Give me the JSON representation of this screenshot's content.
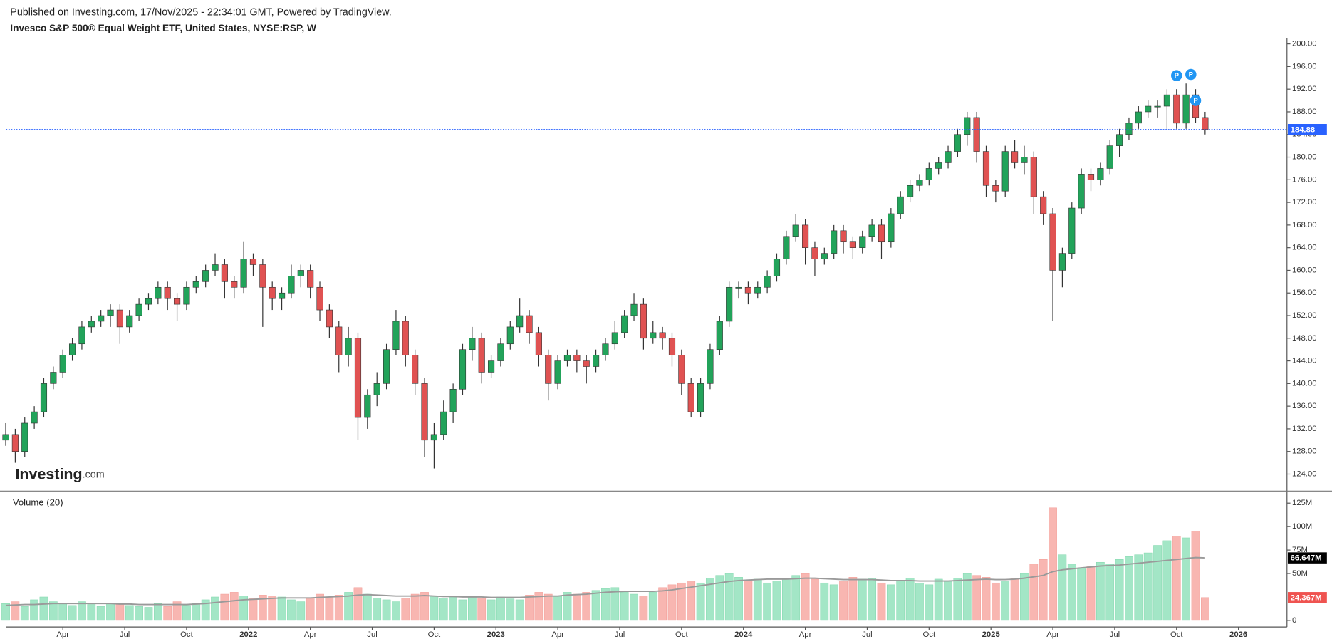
{
  "header": {
    "published": "Published on Investing.com, 17/Nov/2025 - 22:34:01 GMT, Powered by TradingView.",
    "title": "Invesco S&P 500® Equal Weight ETF, United States, NYSE:RSP, W"
  },
  "logo": [
    "Investing",
    ".com"
  ],
  "chart_data": [
    {
      "type": "candlestick",
      "up_color": "#22a35a",
      "down_color": "#e05252",
      "wick_color": "#333333",
      "xlim": [
        -0.6,
        134.6
      ],
      "ylim": [
        121,
        201
      ],
      "yticks": [
        {
          "value": 124,
          "label": "124.00"
        },
        {
          "value": 128,
          "label": "128.00"
        },
        {
          "value": 132,
          "label": "132.00"
        },
        {
          "value": 136,
          "label": "136.00"
        },
        {
          "value": 140,
          "label": "140.00"
        },
        {
          "value": 144,
          "label": "144.00"
        },
        {
          "value": 148,
          "label": "148.00"
        },
        {
          "value": 152,
          "label": "152.00"
        },
        {
          "value": 156,
          "label": "156.00"
        },
        {
          "value": 160,
          "label": "160.00"
        },
        {
          "value": 164,
          "label": "164.00"
        },
        {
          "value": 168,
          "label": "168.00"
        },
        {
          "value": 172,
          "label": "172.00"
        },
        {
          "value": 176,
          "label": "176.00"
        },
        {
          "value": 180,
          "label": "180.00"
        },
        {
          "value": 184,
          "label": "184.00"
        },
        {
          "value": 188,
          "label": "188.00"
        },
        {
          "value": 192,
          "label": "192.00"
        },
        {
          "value": 196,
          "label": "196.00"
        },
        {
          "value": 200,
          "label": "200.00"
        }
      ],
      "last_price_label": "184.88",
      "price_line_color": "#2962ff",
      "markers": [
        {
          "x": 123,
          "y": 194.4,
          "label": "P"
        },
        {
          "x": 124.5,
          "y": 194.6,
          "label": "P"
        },
        {
          "x": 125,
          "y": 190,
          "label": "P"
        }
      ],
      "candles": [
        [
          130,
          133,
          129,
          131
        ],
        [
          131,
          132,
          126,
          128
        ],
        [
          128,
          134,
          127,
          133
        ],
        [
          133,
          136,
          132,
          135
        ],
        [
          135,
          141,
          134,
          140
        ],
        [
          140,
          143,
          139,
          142
        ],
        [
          142,
          146,
          141,
          145
        ],
        [
          145,
          148,
          144,
          147
        ],
        [
          147,
          151,
          146,
          150
        ],
        [
          150,
          152,
          149,
          151
        ],
        [
          151,
          153,
          150,
          152
        ],
        [
          152,
          154,
          150,
          153
        ],
        [
          153,
          154,
          147,
          150
        ],
        [
          150,
          153,
          149,
          152
        ],
        [
          152,
          155,
          151,
          154
        ],
        [
          154,
          156,
          153,
          155
        ],
        [
          155,
          158,
          154,
          157
        ],
        [
          157,
          158,
          153,
          155
        ],
        [
          155,
          156,
          151,
          154
        ],
        [
          154,
          158,
          153,
          157
        ],
        [
          157,
          159,
          156,
          158
        ],
        [
          158,
          161,
          157,
          160
        ],
        [
          160,
          163,
          159,
          161
        ],
        [
          161,
          162,
          155,
          158
        ],
        [
          158,
          159,
          155,
          157
        ],
        [
          157,
          165,
          156,
          162
        ],
        [
          162,
          163,
          159,
          161
        ],
        [
          161,
          162,
          150,
          157
        ],
        [
          157,
          158,
          153,
          155
        ],
        [
          155,
          157,
          153,
          156
        ],
        [
          156,
          161,
          155,
          159
        ],
        [
          159,
          161,
          157,
          160
        ],
        [
          160,
          161,
          155,
          157
        ],
        [
          157,
          158,
          151,
          153
        ],
        [
          153,
          154,
          148,
          150
        ],
        [
          150,
          151,
          142,
          145
        ],
        [
          145,
          150,
          143,
          148
        ],
        [
          148,
          149,
          130,
          134
        ],
        [
          134,
          139,
          132,
          138
        ],
        [
          138,
          142,
          136,
          140
        ],
        [
          140,
          147,
          139,
          146
        ],
        [
          146,
          153,
          145,
          151
        ],
        [
          151,
          152,
          143,
          145
        ],
        [
          145,
          146,
          138,
          140
        ],
        [
          140,
          141,
          127,
          130
        ],
        [
          130,
          133,
          125,
          131
        ],
        [
          131,
          137,
          130,
          135
        ],
        [
          135,
          140,
          133,
          139
        ],
        [
          139,
          147,
          138,
          146
        ],
        [
          146,
          150,
          144,
          148
        ],
        [
          148,
          149,
          140,
          142
        ],
        [
          142,
          145,
          141,
          144
        ],
        [
          144,
          148,
          143,
          147
        ],
        [
          147,
          151,
          146,
          150
        ],
        [
          150,
          155,
          149,
          152
        ],
        [
          152,
          153,
          147,
          149
        ],
        [
          149,
          150,
          143,
          145
        ],
        [
          145,
          146,
          137,
          140
        ],
        [
          140,
          145,
          139,
          144
        ],
        [
          144,
          146,
          143,
          145
        ],
        [
          145,
          146,
          142,
          144
        ],
        [
          144,
          145,
          140,
          143
        ],
        [
          143,
          146,
          142,
          145
        ],
        [
          145,
          148,
          144,
          147
        ],
        [
          147,
          151,
          146,
          149
        ],
        [
          149,
          153,
          148,
          152
        ],
        [
          152,
          156,
          151,
          154
        ],
        [
          154,
          155,
          146,
          148
        ],
        [
          148,
          151,
          147,
          149
        ],
        [
          149,
          150,
          146,
          148
        ],
        [
          148,
          149,
          143,
          145
        ],
        [
          145,
          146,
          138,
          140
        ],
        [
          140,
          141,
          134,
          135
        ],
        [
          135,
          141,
          134,
          140
        ],
        [
          140,
          147,
          139,
          146
        ],
        [
          146,
          152,
          145,
          151
        ],
        [
          151,
          158,
          150,
          157
        ],
        [
          157,
          158,
          155,
          157
        ],
        [
          157,
          158,
          154,
          156
        ],
        [
          156,
          158,
          155,
          157
        ],
        [
          157,
          160,
          156,
          159
        ],
        [
          159,
          163,
          158,
          162
        ],
        [
          162,
          167,
          161,
          166
        ],
        [
          166,
          170,
          165,
          168
        ],
        [
          168,
          169,
          161,
          164
        ],
        [
          164,
          165,
          159,
          162
        ],
        [
          162,
          164,
          161,
          163
        ],
        [
          163,
          168,
          162,
          167
        ],
        [
          167,
          168,
          163,
          165
        ],
        [
          165,
          166,
          162,
          164
        ],
        [
          164,
          167,
          163,
          166
        ],
        [
          166,
          169,
          165,
          168
        ],
        [
          168,
          169,
          162,
          165
        ],
        [
          165,
          171,
          164,
          170
        ],
        [
          170,
          174,
          169,
          173
        ],
        [
          173,
          176,
          172,
          175
        ],
        [
          175,
          177,
          174,
          176
        ],
        [
          176,
          179,
          175,
          178
        ],
        [
          178,
          180,
          177,
          179
        ],
        [
          179,
          182,
          178,
          181
        ],
        [
          181,
          185,
          180,
          184
        ],
        [
          184,
          188,
          182,
          187
        ],
        [
          187,
          188,
          179,
          181
        ],
        [
          181,
          182,
          173,
          175
        ],
        [
          175,
          176,
          172,
          174
        ],
        [
          174,
          182,
          173,
          181
        ],
        [
          181,
          183,
          178,
          179
        ],
        [
          179,
          182,
          177,
          180
        ],
        [
          180,
          181,
          170,
          173
        ],
        [
          173,
          174,
          168,
          170
        ],
        [
          170,
          171,
          151,
          160
        ],
        [
          160,
          164,
          157,
          163
        ],
        [
          163,
          172,
          162,
          171
        ],
        [
          171,
          178,
          170,
          177
        ],
        [
          177,
          178,
          174,
          176
        ],
        [
          176,
          179,
          175,
          178
        ],
        [
          178,
          183,
          177,
          182
        ],
        [
          182,
          185,
          180,
          184
        ],
        [
          184,
          187,
          183,
          186
        ],
        [
          186,
          189,
          185,
          188
        ],
        [
          188,
          190,
          187,
          189
        ],
        [
          189,
          190,
          187,
          189
        ],
        [
          189,
          192,
          185,
          191
        ],
        [
          191,
          192,
          185,
          186
        ],
        [
          186,
          193,
          185,
          191
        ],
        [
          191,
          192,
          186,
          187
        ],
        [
          187,
          188,
          184,
          184.88
        ]
      ]
    },
    {
      "type": "volume",
      "title": "Volume (20)",
      "up_color": "#a3e6c6",
      "down_color": "#f8b6b1",
      "ma_color": "#9a9a9a",
      "last_color": "#ef5350",
      "ma_label_color": "#000000",
      "xlim": [
        -0.6,
        134.6
      ],
      "ylim": [
        -7,
        136
      ],
      "yticks": [
        0,
        {
          "value": 50,
          "label": "50M"
        },
        {
          "value": 75,
          "label": "75M"
        },
        {
          "value": 100,
          "label": "100M"
        },
        {
          "value": 125,
          "label": "125M"
        }
      ],
      "xticks": [
        {
          "value": 6,
          "label": "Apr"
        },
        {
          "value": 12.5,
          "label": "Jul"
        },
        {
          "value": 19,
          "label": "Oct"
        },
        {
          "value": 25.5,
          "label": "2022"
        },
        {
          "value": 32,
          "label": "Apr"
        },
        {
          "value": 38.5,
          "label": "Jul"
        },
        {
          "value": 45,
          "label": "Oct"
        },
        {
          "value": 51.5,
          "label": "2023"
        },
        {
          "value": 58,
          "label": "Apr"
        },
        {
          "value": 64.5,
          "label": "Jul"
        },
        {
          "value": 71,
          "label": "Oct"
        },
        {
          "value": 77.5,
          "label": "2024"
        },
        {
          "value": 84,
          "label": "Apr"
        },
        {
          "value": 90.5,
          "label": "Jul"
        },
        {
          "value": 97,
          "label": "Oct"
        },
        {
          "value": 103.5,
          "label": "2025"
        },
        {
          "value": 110,
          "label": "Apr"
        },
        {
          "value": 116.5,
          "label": "Jul"
        },
        {
          "value": 123,
          "label": "Oct"
        },
        {
          "value": 129.5,
          "label": "2026"
        }
      ],
      "last_label": "24.367M",
      "ma_last_label": "66.647M",
      "values": [
        18,
        20,
        15,
        22,
        25,
        20,
        18,
        16,
        20,
        17,
        15,
        18,
        17,
        16,
        15,
        14,
        18,
        15,
        20,
        16,
        18,
        22,
        25,
        28,
        30,
        26,
        24,
        27,
        26,
        25,
        22,
        20,
        24,
        28,
        25,
        27,
        30,
        35,
        28,
        24,
        22,
        20,
        24,
        28,
        30,
        26,
        24,
        25,
        22,
        26,
        24,
        22,
        25,
        23,
        22,
        27,
        30,
        28,
        26,
        30,
        28,
        30,
        32,
        34,
        35,
        30,
        28,
        26,
        30,
        35,
        38,
        40,
        42,
        40,
        45,
        48,
        50,
        46,
        42,
        44,
        40,
        42,
        45,
        48,
        50,
        44,
        40,
        38,
        42,
        46,
        44,
        45,
        40,
        38,
        42,
        45,
        40,
        38,
        44,
        42,
        45,
        50,
        48,
        46,
        40,
        42,
        45,
        50,
        60,
        65,
        120,
        70,
        60,
        55,
        58,
        62,
        60,
        65,
        68,
        70,
        72,
        80,
        85,
        90,
        88,
        95,
        24.367
      ],
      "ma": [
        16,
        16.5,
        17,
        17,
        17.5,
        18,
        18,
        18,
        18,
        18,
        18,
        18,
        17.5,
        17.5,
        17,
        17,
        17,
        17,
        17,
        17,
        17.5,
        18,
        19,
        20,
        21,
        22,
        22.5,
        23,
        23.5,
        24,
        24,
        24,
        24,
        24.5,
        25,
        25.5,
        26,
        27,
        27.5,
        27,
        26.5,
        26,
        26,
        26,
        26.5,
        26,
        25.5,
        25.5,
        25,
        25,
        25,
        24.5,
        24.5,
        24.5,
        24.5,
        25,
        25.5,
        26,
        26,
        27,
        27.5,
        28,
        29,
        30,
        30.5,
        31,
        31,
        31,
        31,
        31.5,
        32.5,
        34,
        35.5,
        37,
        38.5,
        40,
        41.5,
        42.5,
        43,
        43.5,
        44,
        44,
        44,
        44.5,
        45,
        45,
        44.5,
        44,
        43.5,
        43.5,
        43.5,
        43.5,
        43,
        42.5,
        42.5,
        42.5,
        42,
        42,
        42,
        42,
        42.5,
        43,
        43.5,
        44,
        43.5,
        43.5,
        44,
        45,
        46.5,
        48,
        52,
        54,
        55,
        56,
        57,
        58,
        58.5,
        59,
        60,
        61,
        62,
        63,
        64,
        65,
        66,
        67,
        66.647
      ]
    }
  ]
}
